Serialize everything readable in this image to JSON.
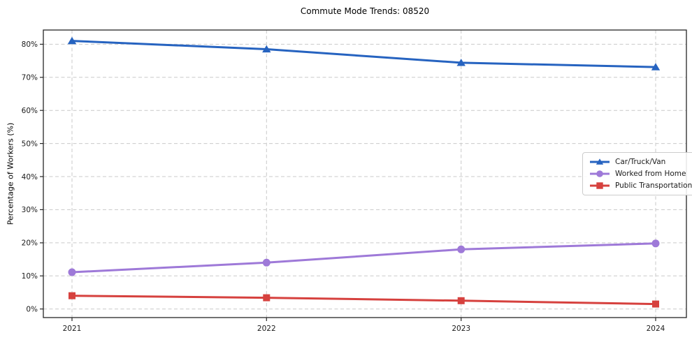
{
  "chart_data": {
    "type": "line",
    "title": "Commute Mode Trends: 08520",
    "xlabel": "",
    "ylabel": "Percentage of Workers (%)",
    "categories": [
      "2021",
      "2022",
      "2023",
      "2024"
    ],
    "series": [
      {
        "name": "Car/Truck/Van",
        "values": [
          81.0,
          78.5,
          74.4,
          73.1
        ],
        "color": "#2663c0",
        "marker": "triangle"
      },
      {
        "name": "Worked from Home",
        "values": [
          11.1,
          14.0,
          18.0,
          19.8
        ],
        "color": "#9e79d8",
        "marker": "circle"
      },
      {
        "name": "Public Transportation",
        "values": [
          4.0,
          3.4,
          2.5,
          1.5
        ],
        "color": "#d6413e",
        "marker": "square"
      }
    ],
    "yticks": [
      0,
      10,
      20,
      30,
      40,
      50,
      60,
      70,
      80
    ],
    "yticklabels": [
      "0%",
      "10%",
      "20%",
      "30%",
      "40%",
      "50%",
      "60%",
      "70%",
      "80%"
    ],
    "ylim": [
      -2.6,
      84.3
    ],
    "grid": true,
    "grid_style": "dashed",
    "legend_position": "right-middle",
    "frame_color": "#262626",
    "grid_color": "#c9c9c9"
  }
}
